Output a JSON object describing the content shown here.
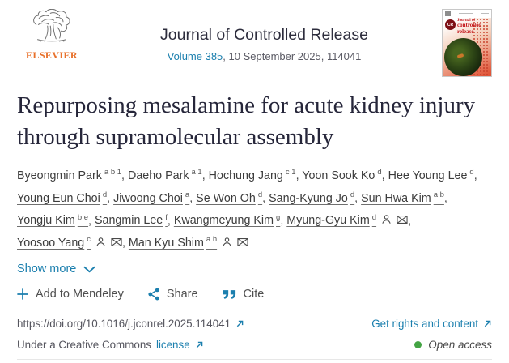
{
  "header": {
    "publisher_wordmark": "ELSEVIER",
    "journal_title": "Journal of Controlled Release",
    "volume_link": "Volume 385",
    "issue_rest": ", 10 September 2025, 114041",
    "cover": {
      "monogram": "CR",
      "title_line1": "Journal of",
      "title_line2": "controlled",
      "title_line3": "release"
    }
  },
  "article": {
    "title": "Repurposing mesalamine for acute kidney injury through supramolecular assembly",
    "show_more_label": "Show more"
  },
  "authors": [
    {
      "name": "Byeongmin Park",
      "sup": "a b 1"
    },
    {
      "name": "Daeho Park",
      "sup": "a 1"
    },
    {
      "name": "Hochung Jang",
      "sup": "c 1"
    },
    {
      "name": "Yoon Sook Ko",
      "sup": "d"
    },
    {
      "name": "Hee Young Lee",
      "sup": "d"
    },
    {
      "name": "Young Eun Choi",
      "sup": "d"
    },
    {
      "name": "Jiwoong Choi",
      "sup": "a"
    },
    {
      "name": "Se Won Oh",
      "sup": "d"
    },
    {
      "name": "Sang-Kyung Jo",
      "sup": "d"
    },
    {
      "name": "Sun Hwa Kim",
      "sup": "a b"
    },
    {
      "name": "Yongju Kim",
      "sup": "b e"
    },
    {
      "name": "Sangmin Lee",
      "sup": "f"
    },
    {
      "name": "Kwangmeyung Kim",
      "sup": "g"
    },
    {
      "name": "Myung-Gyu Kim",
      "sup": "d",
      "has_profile": true,
      "has_email": true
    },
    {
      "name": "Yoosoo Yang",
      "sup": "c",
      "has_profile": true,
      "has_email": true
    },
    {
      "name": "Man Kyu Shim",
      "sup": "a h",
      "has_profile": true,
      "has_email": true
    }
  ],
  "actions": {
    "mendeley_label": "Add to Mendeley",
    "share_label": "Share",
    "cite_label": "Cite"
  },
  "footer": {
    "doi": "https://doi.org/10.1016/j.jconrel.2025.114041",
    "rights_label": "Get rights and content",
    "license_prefix": "Under a Creative Commons",
    "license_link": "license",
    "open_access_label": "Open access"
  },
  "colors": {
    "link_blue": "#1b7fae",
    "elsevier_orange": "#e8702a",
    "open_access_green": "#44a444",
    "cover_red": "#c3161b"
  }
}
